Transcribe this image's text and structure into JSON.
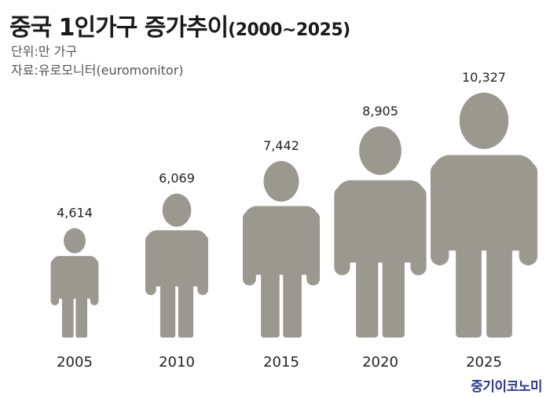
{
  "header": {
    "title": "중국 1인가구 증가추이",
    "title_range": "(2000~2025)",
    "unit": "단위:만 가구",
    "source": "자료:유로모니터(euromonitor)"
  },
  "brand": "중기이코노미",
  "colors": {
    "figure": "#9b9890",
    "text": "#222222",
    "brand": "#2a3a8c"
  },
  "chart_data": {
    "type": "bar",
    "categories": [
      "2005",
      "2010",
      "2015",
      "2020",
      "2025"
    ],
    "value_labels": [
      "4,614",
      "6,069",
      "7,442",
      "8,905",
      "10,327"
    ],
    "values": [
      4614,
      6069,
      7442,
      8905,
      10327
    ],
    "ylabel": "",
    "xlabel": ""
  }
}
